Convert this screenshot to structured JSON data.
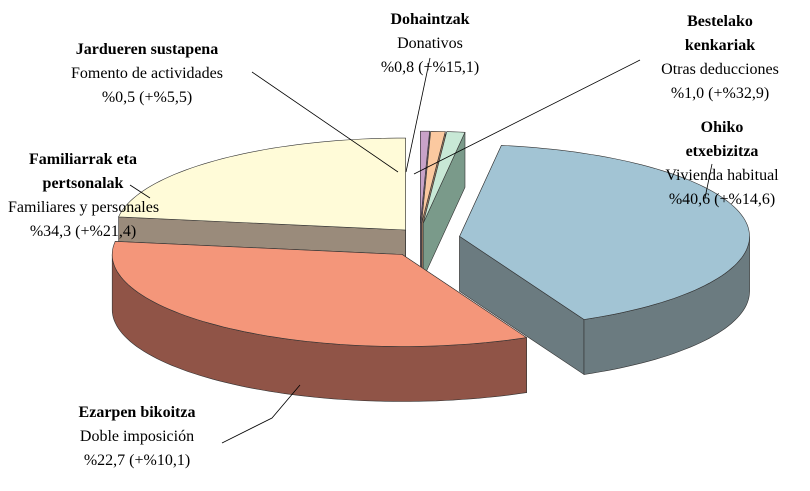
{
  "chart_data": {
    "type": "pie3d",
    "categories": [
      "Jardueren sustapena",
      "Dohaintzak",
      "Bestelako kenkariak",
      "Ohiko etxebizitza",
      "Familiarrak eta pertsonalak",
      "Ezarpen bikoitza"
    ],
    "subcategories": [
      "Fomento de actividades",
      "Donativos",
      "Otras deducciones",
      "Vivienda habitual",
      "Familiares y personales",
      "Doble imposición"
    ],
    "values": [
      0.5,
      0.8,
      1.0,
      40.6,
      34.3,
      22.7
    ],
    "value_labels": [
      "%0,5 (+%5,5)",
      "%0,8 (+%15,1)",
      "%1,0 (+%32,9)",
      "%40,6 (+%14,6)",
      "%34,3 (+%21,4)",
      "%22,7 (+%10,1)"
    ],
    "colors": [
      "#c8a2c8",
      "#fbc9a0",
      "#c8e8d6",
      "#a2c4d4",
      "#f4967a",
      "#fffbd8"
    ],
    "side_colors": [
      "#8a6a84",
      "#a07a60",
      "#7a9a8a",
      "#6b7b80",
      "#905447",
      "#9a8b7b"
    ]
  }
}
